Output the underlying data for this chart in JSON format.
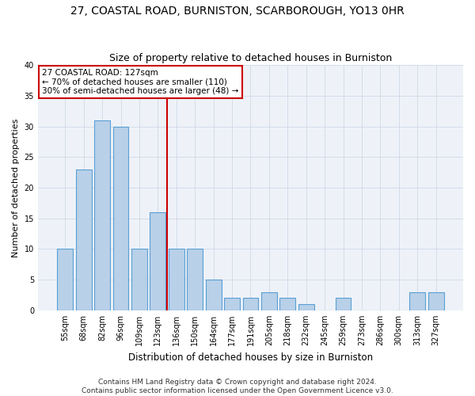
{
  "title": "27, COASTAL ROAD, BURNISTON, SCARBOROUGH, YO13 0HR",
  "subtitle": "Size of property relative to detached houses in Burniston",
  "xlabel": "Distribution of detached houses by size in Burniston",
  "ylabel": "Number of detached properties",
  "categories": [
    "55sqm",
    "68sqm",
    "82sqm",
    "96sqm",
    "109sqm",
    "123sqm",
    "136sqm",
    "150sqm",
    "164sqm",
    "177sqm",
    "191sqm",
    "205sqm",
    "218sqm",
    "232sqm",
    "245sqm",
    "259sqm",
    "273sqm",
    "286sqm",
    "300sqm",
    "313sqm",
    "327sqm"
  ],
  "values": [
    10,
    23,
    31,
    30,
    10,
    16,
    10,
    10,
    5,
    2,
    2,
    3,
    2,
    1,
    0,
    2,
    0,
    0,
    0,
    3,
    3
  ],
  "bar_color": "#b8d0e8",
  "bar_edge_color": "#5a9fd4",
  "vline_color": "#cc0000",
  "vline_index": 5.5,
  "annotation_line1": "27 COASTAL ROAD: 127sqm",
  "annotation_line2": "← 70% of detached houses are smaller (110)",
  "annotation_line3": "30% of semi-detached houses are larger (48) →",
  "annotation_box_color": "#cc0000",
  "ylim": [
    0,
    40
  ],
  "yticks": [
    0,
    5,
    10,
    15,
    20,
    25,
    30,
    35,
    40
  ],
  "grid_color": "#d0d8e8",
  "background_color": "#eef2f8",
  "footer_line1": "Contains HM Land Registry data © Crown copyright and database right 2024.",
  "footer_line2": "Contains public sector information licensed under the Open Government Licence v3.0.",
  "title_fontsize": 10,
  "subtitle_fontsize": 9,
  "xlabel_fontsize": 8.5,
  "ylabel_fontsize": 8,
  "tick_fontsize": 7,
  "annotation_fontsize": 7.5,
  "footer_fontsize": 6.5
}
